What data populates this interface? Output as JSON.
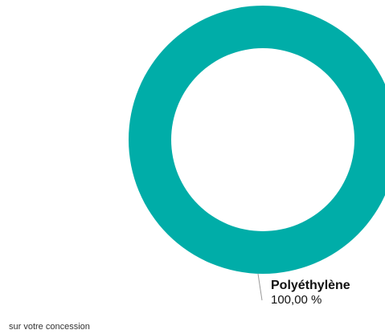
{
  "chart_data": {
    "type": "pie",
    "donut": true,
    "slices": [
      {
        "label": "Polyéthylène",
        "value": 100,
        "value_label": "100,00 %",
        "color": "#00ada8"
      }
    ]
  },
  "footer": {
    "note": "sur votre concession"
  }
}
